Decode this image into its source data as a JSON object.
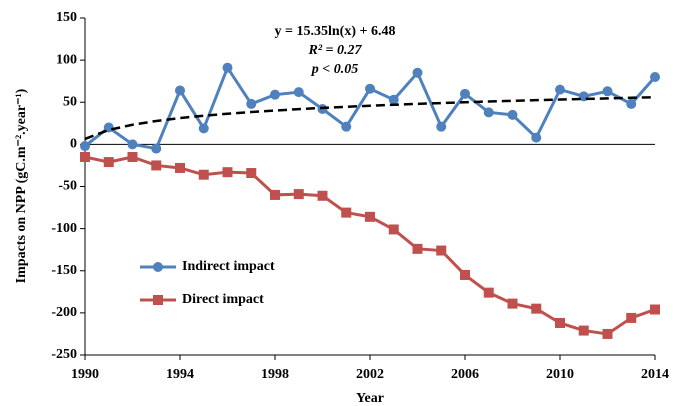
{
  "chart_data": {
    "type": "line",
    "x_label": "Year",
    "y_label": "Impacts on  NPP (gC.m⁻².year⁻¹)",
    "annotations": [
      "y = 15.35ln(x) + 6.48",
      "R² = 0.27",
      "p < 0.05"
    ],
    "x": [
      1990,
      1991,
      1992,
      1993,
      1994,
      1995,
      1996,
      1997,
      1998,
      1999,
      2000,
      2001,
      2002,
      2003,
      2004,
      2005,
      2006,
      2007,
      2008,
      2009,
      2010,
      2011,
      2012,
      2013,
      2014
    ],
    "series": [
      {
        "name": "Indirect impact",
        "color": "#4f81bd",
        "marker": "circle",
        "values": [
          -2,
          20,
          0,
          -5,
          64,
          19,
          91,
          48,
          59,
          62,
          42,
          21,
          66,
          53,
          85,
          21,
          60,
          38,
          35,
          8,
          65,
          57,
          63,
          48,
          80
        ]
      },
      {
        "name": "Direct impact",
        "color": "#c0504d",
        "marker": "square",
        "values": [
          -15,
          -21,
          -15,
          -25,
          -28,
          -36,
          -33,
          -34,
          -60,
          -59,
          -61,
          -81,
          -86,
          -101,
          -124,
          -126,
          -155,
          -176,
          -189,
          -195,
          -212,
          -221,
          -225,
          -206,
          -196
        ]
      }
    ],
    "trendline": {
      "color": "#000000",
      "dashed": true,
      "values": [
        6.5,
        17.1,
        23.3,
        27.8,
        31.2,
        34.0,
        36.4,
        38.4,
        40.2,
        41.8,
        43.3,
        44.6,
        45.9,
        47.0,
        48.1,
        49.0,
        50.0,
        50.9,
        51.7,
        52.5,
        53.2,
        53.9,
        54.6,
        55.3,
        55.9
      ]
    },
    "xlim": [
      1990,
      2014
    ],
    "xticks": [
      1990,
      1994,
      1998,
      2002,
      2006,
      2010,
      2014
    ],
    "ylim": [
      -250,
      150
    ],
    "yticks": [
      -250,
      -200,
      -150,
      -100,
      -50,
      0,
      50,
      100,
      150
    ],
    "grid": false,
    "legend": "lower left"
  }
}
